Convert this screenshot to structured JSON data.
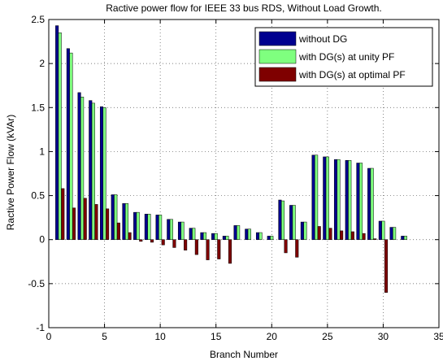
{
  "chart_data": {
    "type": "bar",
    "title": "Ractive power flow for IEEE 33 bus RDS, Without Load Growth.",
    "xlabel": "Branch Number",
    "ylabel": "Ractive Power Flow (kVAr)",
    "xlim": [
      0,
      35
    ],
    "ylim": [
      -1,
      2.5
    ],
    "xticks": [
      0,
      5,
      10,
      15,
      20,
      25,
      30,
      35
    ],
    "yticks": [
      -1,
      -0.5,
      0,
      0.5,
      1,
      1.5,
      2,
      2.5
    ],
    "grid": true,
    "legend_position": "top-right",
    "categories": [
      1,
      2,
      3,
      4,
      5,
      6,
      7,
      8,
      9,
      10,
      11,
      12,
      13,
      14,
      15,
      16,
      17,
      18,
      19,
      20,
      21,
      22,
      23,
      24,
      25,
      26,
      27,
      28,
      29,
      30,
      31,
      32
    ],
    "series": [
      {
        "name": "without DG",
        "color": "#00008f",
        "values": [
          2.43,
          2.17,
          1.67,
          1.58,
          1.51,
          0.51,
          0.41,
          0.31,
          0.29,
          0.28,
          0.23,
          0.2,
          0.13,
          0.08,
          0.07,
          0.04,
          0.16,
          0.12,
          0.08,
          0.04,
          0.45,
          0.39,
          0.2,
          0.96,
          0.94,
          0.91,
          0.9,
          0.87,
          0.81,
          0.21,
          0.14,
          0.04
        ]
      },
      {
        "name": "with DG(s) at unity PF",
        "color": "#7fff7f",
        "values": [
          2.35,
          2.12,
          1.62,
          1.55,
          1.5,
          0.51,
          0.41,
          0.31,
          0.29,
          0.28,
          0.23,
          0.2,
          0.13,
          0.08,
          0.07,
          0.04,
          0.16,
          0.12,
          0.08,
          0.04,
          0.44,
          0.39,
          0.2,
          0.96,
          0.94,
          0.91,
          0.9,
          0.87,
          0.81,
          0.21,
          0.14,
          0.04
        ]
      },
      {
        "name": "with DG(s) at optimal PF",
        "color": "#7f0000",
        "values": [
          0.58,
          0.36,
          0.47,
          0.4,
          0.35,
          0.19,
          0.08,
          -0.02,
          -0.03,
          -0.06,
          -0.09,
          -0.12,
          -0.17,
          -0.23,
          -0.22,
          -0.27,
          0.0,
          0.0,
          0.0,
          0.0,
          -0.15,
          -0.2,
          0.0,
          0.15,
          0.13,
          0.1,
          0.09,
          0.07,
          0.01,
          -0.6,
          0.0,
          0.0
        ]
      }
    ]
  }
}
